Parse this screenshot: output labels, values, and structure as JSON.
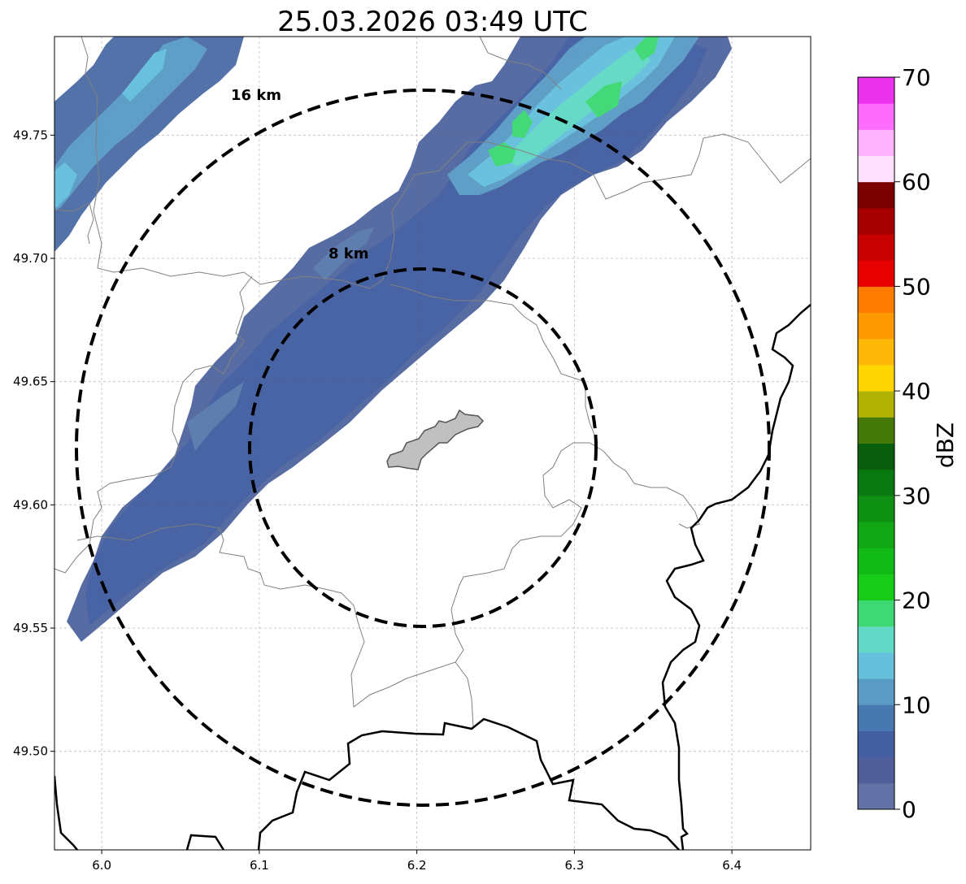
{
  "title": "25.03.2026 03:49 UTC",
  "map": {
    "lon_range": [
      5.97,
      6.45
    ],
    "lat_range": [
      49.46,
      49.79
    ],
    "x_ticks": [
      "6.0",
      "6.1",
      "6.2",
      "6.3",
      "6.4"
    ],
    "x_tick_values": [
      6.0,
      6.1,
      6.2,
      6.3,
      6.4
    ],
    "y_ticks": [
      "49.50",
      "49.55",
      "49.60",
      "49.65",
      "49.70",
      "49.75"
    ],
    "y_tick_values": [
      49.5,
      49.55,
      49.6,
      49.65,
      49.7,
      49.75
    ],
    "grid": "dashed light gray",
    "center": [
      6.205,
      49.623
    ],
    "range_rings": [
      {
        "label": "8 km",
        "radius_km": 8
      },
      {
        "label": "16 km",
        "radius_km": 16
      }
    ],
    "city_outline_color": "#c0c0c0",
    "border_color": "#000000",
    "admin_line_color": "#808080"
  },
  "colorbar": {
    "label": "dBZ",
    "ticks": [
      "0",
      "10",
      "20",
      "30",
      "40",
      "50",
      "60",
      "70"
    ],
    "tick_values": [
      0,
      10,
      20,
      30,
      40,
      50,
      60,
      70
    ],
    "colors": [
      "#6272a6",
      "#505e9a",
      "#4460a2",
      "#4878b0",
      "#5a9cc6",
      "#66c0dc",
      "#62d8c6",
      "#3ed874",
      "#16cc18",
      "#12ba16",
      "#10a614",
      "#0e9012",
      "#0a7810",
      "#085e0c",
      "#467a08",
      "#b2b204",
      "#fed600",
      "#feb808",
      "#fe9a00",
      "#fe7c00",
      "#e80000",
      "#c80000",
      "#a80000",
      "#7a0000",
      "#fee0fe",
      "#feb4fe",
      "#fe6cfe",
      "#ec32ec"
    ]
  }
}
